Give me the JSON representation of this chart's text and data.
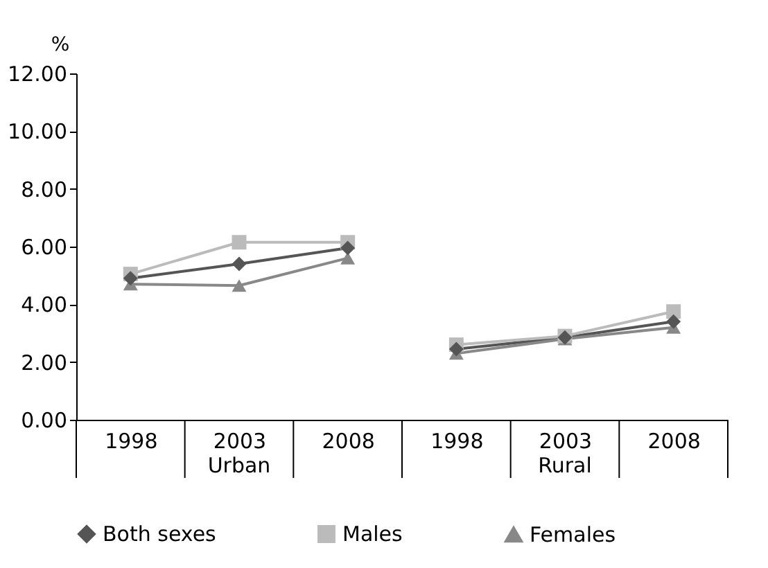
{
  "chart_data": {
    "type": "line",
    "ylabel": "%",
    "categories": [
      "1998",
      "2003",
      "2008",
      "1998",
      "2003",
      "2008"
    ],
    "annotations": [
      "Urban",
      "Rural"
    ],
    "ylim": [
      0,
      12
    ],
    "yticks": [
      {
        "value": 0,
        "label": "0.00"
      },
      {
        "value": 2,
        "label": "2.00"
      },
      {
        "value": 4,
        "label": "4.00"
      },
      {
        "value": 6,
        "label": "6.00"
      },
      {
        "value": 8,
        "label": "8.00"
      },
      {
        "value": 10,
        "label": "10.00"
      },
      {
        "value": 12,
        "label": "12.00"
      }
    ],
    "legend": "bottom",
    "grid": false,
    "line_style": "solid",
    "series": [
      {
        "name": "Both sexes",
        "color": "#555555",
        "marker": "diamond",
        "values": [
          4.9,
          5.4,
          5.95,
          2.45,
          2.85,
          3.4
        ]
      },
      {
        "name": "Males",
        "color": "#bbbbbb",
        "marker": "square",
        "values": [
          5.05,
          6.15,
          6.15,
          2.6,
          2.9,
          3.75
        ]
      },
      {
        "name": "Females",
        "color": "#888888",
        "marker": "triangle",
        "values": [
          4.7,
          4.65,
          5.6,
          2.3,
          2.8,
          3.2
        ]
      }
    ]
  }
}
